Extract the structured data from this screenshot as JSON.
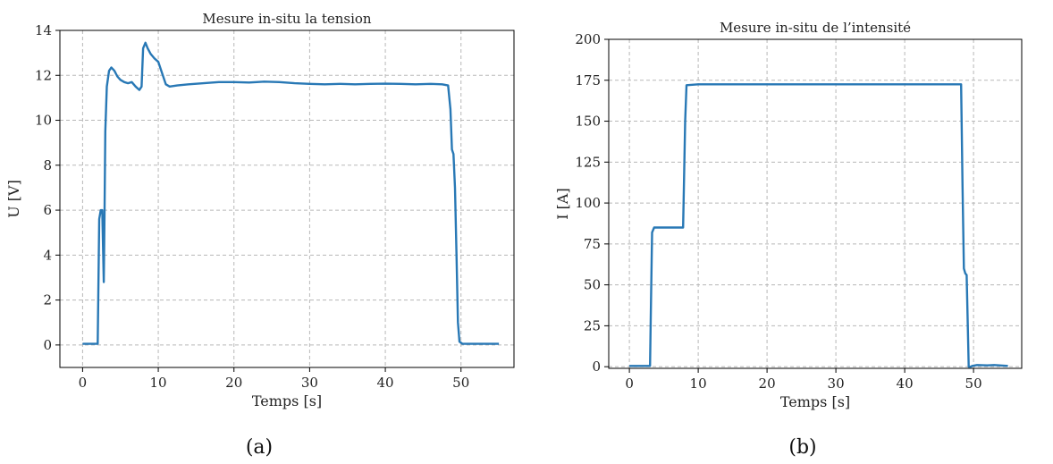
{
  "chart_data": [
    {
      "type": "line",
      "title": "Mesure in-situ la tension",
      "xlabel": "Temps [s]",
      "ylabel": "U [V]",
      "xlim": [
        -3,
        57
      ],
      "ylim": [
        -1,
        14
      ],
      "xticks": [
        0,
        10,
        20,
        30,
        40,
        50
      ],
      "yticks": [
        0,
        2,
        4,
        6,
        8,
        10,
        12,
        14
      ],
      "grid": true,
      "caption": "(a)",
      "color": "#2878b5",
      "series": [
        {
          "x": [
            0,
            2.0,
            2.2,
            2.4,
            2.6,
            2.8,
            2.9,
            3.0,
            3.2,
            3.5,
            3.8,
            4.2,
            4.6,
            5.0,
            5.5,
            6.0,
            6.5,
            7.0,
            7.5,
            7.8,
            8.0,
            8.3,
            8.6,
            9.0,
            9.5,
            10.0,
            10.5,
            11.0,
            11.5,
            12.5,
            14,
            16,
            18,
            20,
            22,
            24,
            26,
            28,
            30,
            32,
            34,
            36,
            38,
            40,
            42,
            44,
            46,
            47.5,
            48.3,
            48.6,
            48.8,
            49.0,
            49.2,
            49.4,
            49.6,
            49.8,
            50.2,
            51,
            53,
            55
          ],
          "y": [
            0.05,
            0.05,
            5.6,
            6.0,
            6.0,
            2.8,
            6.1,
            9.5,
            11.5,
            12.2,
            12.35,
            12.2,
            11.95,
            11.8,
            11.7,
            11.65,
            11.7,
            11.5,
            11.35,
            11.5,
            13.2,
            13.45,
            13.2,
            12.95,
            12.75,
            12.6,
            12.1,
            11.6,
            11.5,
            11.55,
            11.6,
            11.65,
            11.7,
            11.7,
            11.68,
            11.72,
            11.7,
            11.65,
            11.62,
            11.6,
            11.62,
            11.6,
            11.62,
            11.63,
            11.62,
            11.6,
            11.62,
            11.6,
            11.55,
            10.5,
            8.7,
            8.5,
            7.0,
            4.0,
            1.0,
            0.15,
            0.05,
            0.05,
            0.05,
            0.05
          ]
        }
      ]
    },
    {
      "type": "line",
      "title": "Mesure in-situ de l’intensité",
      "xlabel": "Temps [s]",
      "ylabel": "I [A]",
      "xlim": [
        -3,
        57
      ],
      "ylim": [
        -1,
        200
      ],
      "xticks": [
        0,
        10,
        20,
        30,
        40,
        50
      ],
      "yticks": [
        0,
        25,
        50,
        75,
        100,
        125,
        150,
        175,
        200
      ],
      "grid": true,
      "caption": "(b)",
      "color": "#2878b5",
      "series": [
        {
          "x": [
            0,
            3.0,
            3.1,
            3.3,
            3.6,
            7.0,
            7.8,
            8.1,
            8.3,
            10,
            20,
            30,
            40,
            48.2,
            48.4,
            48.6,
            48.8,
            49.0,
            49.3,
            49.6,
            49.8,
            50.5,
            52,
            53,
            55
          ],
          "y": [
            0.5,
            0.5,
            30,
            82,
            85,
            85,
            85,
            150,
            172,
            172.5,
            172.5,
            172.5,
            172.5,
            172.5,
            110,
            60,
            57,
            56,
            0,
            0,
            0.5,
            1,
            0.8,
            1,
            0.5
          ]
        }
      ]
    }
  ]
}
